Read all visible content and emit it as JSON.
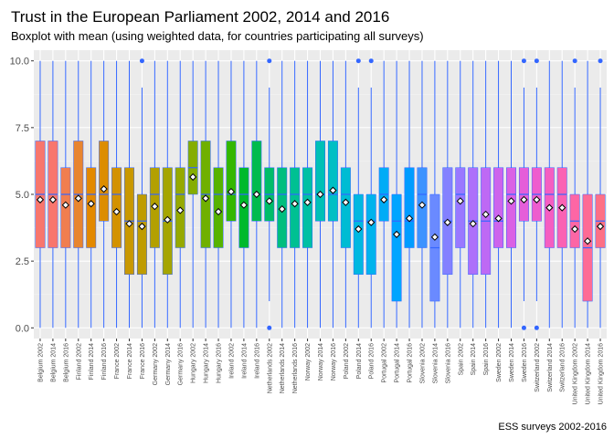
{
  "chart_data": {
    "type": "boxplot",
    "title": "Trust in the European Parliament 2002, 2014 and 2016",
    "subtitle": "Boxplot with mean (using weighted data, for countries participating all surveys)",
    "caption": "ESS surveys 2002-2016",
    "ylim": [
      -0.4,
      10.4
    ],
    "yticks": [
      "0.0",
      "2.5",
      "5.0",
      "7.5",
      "10.0"
    ],
    "yticks_values": [
      0,
      2.5,
      5,
      7.5,
      10
    ],
    "grid": true,
    "legend": "none",
    "colors": {
      "panel": "#ebebeb",
      "grid_major": "#ffffff",
      "grid_minor": "#f4f4f4",
      "whisker": "#3366ff",
      "median": "#3366ff",
      "outlier": "#3366ff",
      "mean_fill": "#ffffff",
      "mean_stroke": "#000000"
    },
    "categories": [
      "Belgium 2002",
      "Belgium 2014",
      "Belgium 2016",
      "Finland 2002",
      "Finland 2014",
      "Finland 2016",
      "France 2002",
      "France 2014",
      "France 2016",
      "Germany 2002",
      "Germany 2014",
      "Germany 2016",
      "Hungary 2002",
      "Hungary 2014",
      "Hungary 2016",
      "Ireland 2002",
      "Ireland 2014",
      "Ireland 2016",
      "Netherlands 2002",
      "Netherlands 2014",
      "Netherlands 2016",
      "Norway 2002",
      "Norway 2014",
      "Norway 2016",
      "Poland 2002",
      "Poland 2014",
      "Poland 2016",
      "Portugal 2002",
      "Portugal 2014",
      "Portugal 2016",
      "Slovenia 2002",
      "Slovenia 2014",
      "Slovenia 2016",
      "Spain 2002",
      "Spain 2014",
      "Spain 2016",
      "Sweden 2002",
      "Sweden 2014",
      "Sweden 2016",
      "Switzerland 2002",
      "Switzerland 2014",
      "Switzerland 2016",
      "United Kingdom 2002",
      "United Kingdom 2014",
      "United Kingdom 2016"
    ],
    "boxes": [
      {
        "min": 0,
        "q1": 3,
        "median": 5,
        "q3": 7,
        "max": 10,
        "mean": 4.8,
        "outliers": [],
        "color": "#f8766d"
      },
      {
        "min": 0,
        "q1": 3,
        "median": 5,
        "q3": 7,
        "max": 10,
        "mean": 4.8,
        "outliers": [],
        "color": "#f8766d"
      },
      {
        "min": 0,
        "q1": 3,
        "median": 5,
        "q3": 6,
        "max": 10,
        "mean": 4.6,
        "outliers": [],
        "color": "#f07e50"
      },
      {
        "min": 0,
        "q1": 3,
        "median": 5,
        "q3": 7,
        "max": 10,
        "mean": 4.85,
        "outliers": [],
        "color": "#e8852f"
      },
      {
        "min": 0,
        "q1": 3,
        "median": 5,
        "q3": 6,
        "max": 10,
        "mean": 4.65,
        "outliers": [],
        "color": "#e38900"
      },
      {
        "min": 0,
        "q1": 4,
        "median": 5,
        "q3": 7,
        "max": 10,
        "mean": 5.2,
        "outliers": [],
        "color": "#dc8d00"
      },
      {
        "min": 0,
        "q1": 3,
        "median": 5,
        "q3": 6,
        "max": 10,
        "mean": 4.35,
        "outliers": [],
        "color": "#d39200"
      },
      {
        "min": 0,
        "q1": 2,
        "median": 4,
        "q3": 6,
        "max": 10,
        "mean": 3.9,
        "outliers": [],
        "color": "#c99800"
      },
      {
        "min": 0,
        "q1": 2,
        "median": 4,
        "q3": 5,
        "max": 9,
        "mean": 3.8,
        "outliers": [
          10
        ],
        "color": "#bf9c00"
      },
      {
        "min": 0,
        "q1": 3,
        "median": 5,
        "q3": 6,
        "max": 10,
        "mean": 4.55,
        "outliers": [],
        "color": "#b3a000"
      },
      {
        "min": 0,
        "q1": 2,
        "median": 4,
        "q3": 6,
        "max": 10,
        "mean": 4.05,
        "outliers": [],
        "color": "#a5a500"
      },
      {
        "min": 0,
        "q1": 3,
        "median": 5,
        "q3": 6,
        "max": 10,
        "mean": 4.4,
        "outliers": [],
        "color": "#96a900"
      },
      {
        "min": 0,
        "q1": 5,
        "median": 6,
        "q3": 7,
        "max": 10,
        "mean": 5.65,
        "outliers": [],
        "color": "#85ad00"
      },
      {
        "min": 0,
        "q1": 3,
        "median": 5,
        "q3": 7,
        "max": 10,
        "mean": 4.85,
        "outliers": [],
        "color": "#70b000"
      },
      {
        "min": 0,
        "q1": 3,
        "median": 5,
        "q3": 6,
        "max": 10,
        "mean": 4.35,
        "outliers": [],
        "color": "#57b300"
      },
      {
        "min": 0,
        "q1": 4,
        "median": 5,
        "q3": 7,
        "max": 10,
        "mean": 5.1,
        "outliers": [],
        "color": "#34b700"
      },
      {
        "min": 0,
        "q1": 3,
        "median": 5,
        "q3": 6,
        "max": 10,
        "mean": 4.6,
        "outliers": [],
        "color": "#00b92c"
      },
      {
        "min": 0,
        "q1": 4,
        "median": 5,
        "q3": 7,
        "max": 10,
        "mean": 5.0,
        "outliers": [],
        "color": "#00bb4e"
      },
      {
        "min": 1,
        "q1": 4,
        "median": 5,
        "q3": 6,
        "max": 9,
        "mean": 4.75,
        "outliers": [
          0,
          10
        ],
        "color": "#00bd68"
      },
      {
        "min": 0,
        "q1": 3,
        "median": 5,
        "q3": 6,
        "max": 10,
        "mean": 4.45,
        "outliers": [],
        "color": "#00be7e"
      },
      {
        "min": 0,
        "q1": 3,
        "median": 5,
        "q3": 6,
        "max": 10,
        "mean": 4.65,
        "outliers": [],
        "color": "#00c092"
      },
      {
        "min": 0,
        "q1": 3,
        "median": 5,
        "q3": 6,
        "max": 10,
        "mean": 4.7,
        "outliers": [],
        "color": "#00c0a4"
      },
      {
        "min": 0,
        "q1": 4,
        "median": 5,
        "q3": 7,
        "max": 10,
        "mean": 5.0,
        "outliers": [],
        "color": "#00c0b5"
      },
      {
        "min": 0,
        "q1": 4,
        "median": 5,
        "q3": 7,
        "max": 10,
        "mean": 5.15,
        "outliers": [],
        "color": "#00bfc4"
      },
      {
        "min": 0,
        "q1": 3,
        "median": 5,
        "q3": 6,
        "max": 10,
        "mean": 4.7,
        "outliers": [],
        "color": "#00bcd3"
      },
      {
        "min": 0,
        "q1": 2,
        "median": 4,
        "q3": 5,
        "max": 9,
        "mean": 3.7,
        "outliers": [
          10
        ],
        "color": "#00b8e0"
      },
      {
        "min": 0,
        "q1": 2,
        "median": 4,
        "q3": 5,
        "max": 9,
        "mean": 3.95,
        "outliers": [
          10
        ],
        "color": "#00b3ec"
      },
      {
        "min": 0,
        "q1": 4,
        "median": 5,
        "q3": 6,
        "max": 10,
        "mean": 4.8,
        "outliers": [],
        "color": "#00acf6"
      },
      {
        "min": 0,
        "q1": 1,
        "median": 4,
        "q3": 5,
        "max": 10,
        "mean": 3.5,
        "outliers": [],
        "color": "#00a5ff"
      },
      {
        "min": 0,
        "q1": 3,
        "median": 4,
        "q3": 6,
        "max": 10,
        "mean": 4.1,
        "outliers": [],
        "color": "#009cff"
      },
      {
        "min": 0,
        "q1": 3,
        "median": 5,
        "q3": 6,
        "max": 10,
        "mean": 4.6,
        "outliers": [],
        "color": "#3d93ff"
      },
      {
        "min": 0,
        "q1": 1,
        "median": 3,
        "q3": 5,
        "max": 10,
        "mean": 3.4,
        "outliers": [],
        "color": "#6a8aff"
      },
      {
        "min": 0,
        "q1": 2,
        "median": 4,
        "q3": 6,
        "max": 10,
        "mean": 3.95,
        "outliers": [],
        "color": "#8481ff"
      },
      {
        "min": 0,
        "q1": 3,
        "median": 5,
        "q3": 6,
        "max": 10,
        "mean": 4.75,
        "outliers": [],
        "color": "#9a78ff"
      },
      {
        "min": 0,
        "q1": 2,
        "median": 4,
        "q3": 6,
        "max": 10,
        "mean": 3.9,
        "outliers": [],
        "color": "#ad70fa"
      },
      {
        "min": 0,
        "q1": 2,
        "median": 4,
        "q3": 6,
        "max": 10,
        "mean": 4.25,
        "outliers": [],
        "color": "#be69f4"
      },
      {
        "min": 0,
        "q1": 3,
        "median": 4,
        "q3": 6,
        "max": 10,
        "mean": 4.1,
        "outliers": [],
        "color": "#cd64ec"
      },
      {
        "min": 0,
        "q1": 3,
        "median": 5,
        "q3": 6,
        "max": 10,
        "mean": 4.75,
        "outliers": [],
        "color": "#da61e4"
      },
      {
        "min": 1,
        "q1": 4,
        "median": 5,
        "q3": 6,
        "max": 9,
        "mean": 4.8,
        "outliers": [
          0,
          10
        ],
        "color": "#e55ed9"
      },
      {
        "min": 1,
        "q1": 4,
        "median": 5,
        "q3": 6,
        "max": 9,
        "mean": 4.8,
        "outliers": [
          0,
          10
        ],
        "color": "#ee5dce"
      },
      {
        "min": 0,
        "q1": 3,
        "median": 5,
        "q3": 6,
        "max": 10,
        "mean": 4.5,
        "outliers": [],
        "color": "#f55ec1"
      },
      {
        "min": 0,
        "q1": 3,
        "median": 5,
        "q3": 6,
        "max": 10,
        "mean": 4.5,
        "outliers": [],
        "color": "#fa62b3"
      },
      {
        "min": 0,
        "q1": 3,
        "median": 4,
        "q3": 5,
        "max": 9,
        "mean": 3.7,
        "outliers": [
          10
        ],
        "color": "#fd66a5"
      },
      {
        "min": 0,
        "q1": 1,
        "median": 3,
        "q3": 5,
        "max": 10,
        "mean": 3.25,
        "outliers": [],
        "color": "#fe6b95"
      },
      {
        "min": 0,
        "q1": 3,
        "median": 4,
        "q3": 5,
        "max": 9,
        "mean": 3.8,
        "outliers": [
          10
        ],
        "color": "#fd7085"
      }
    ]
  }
}
